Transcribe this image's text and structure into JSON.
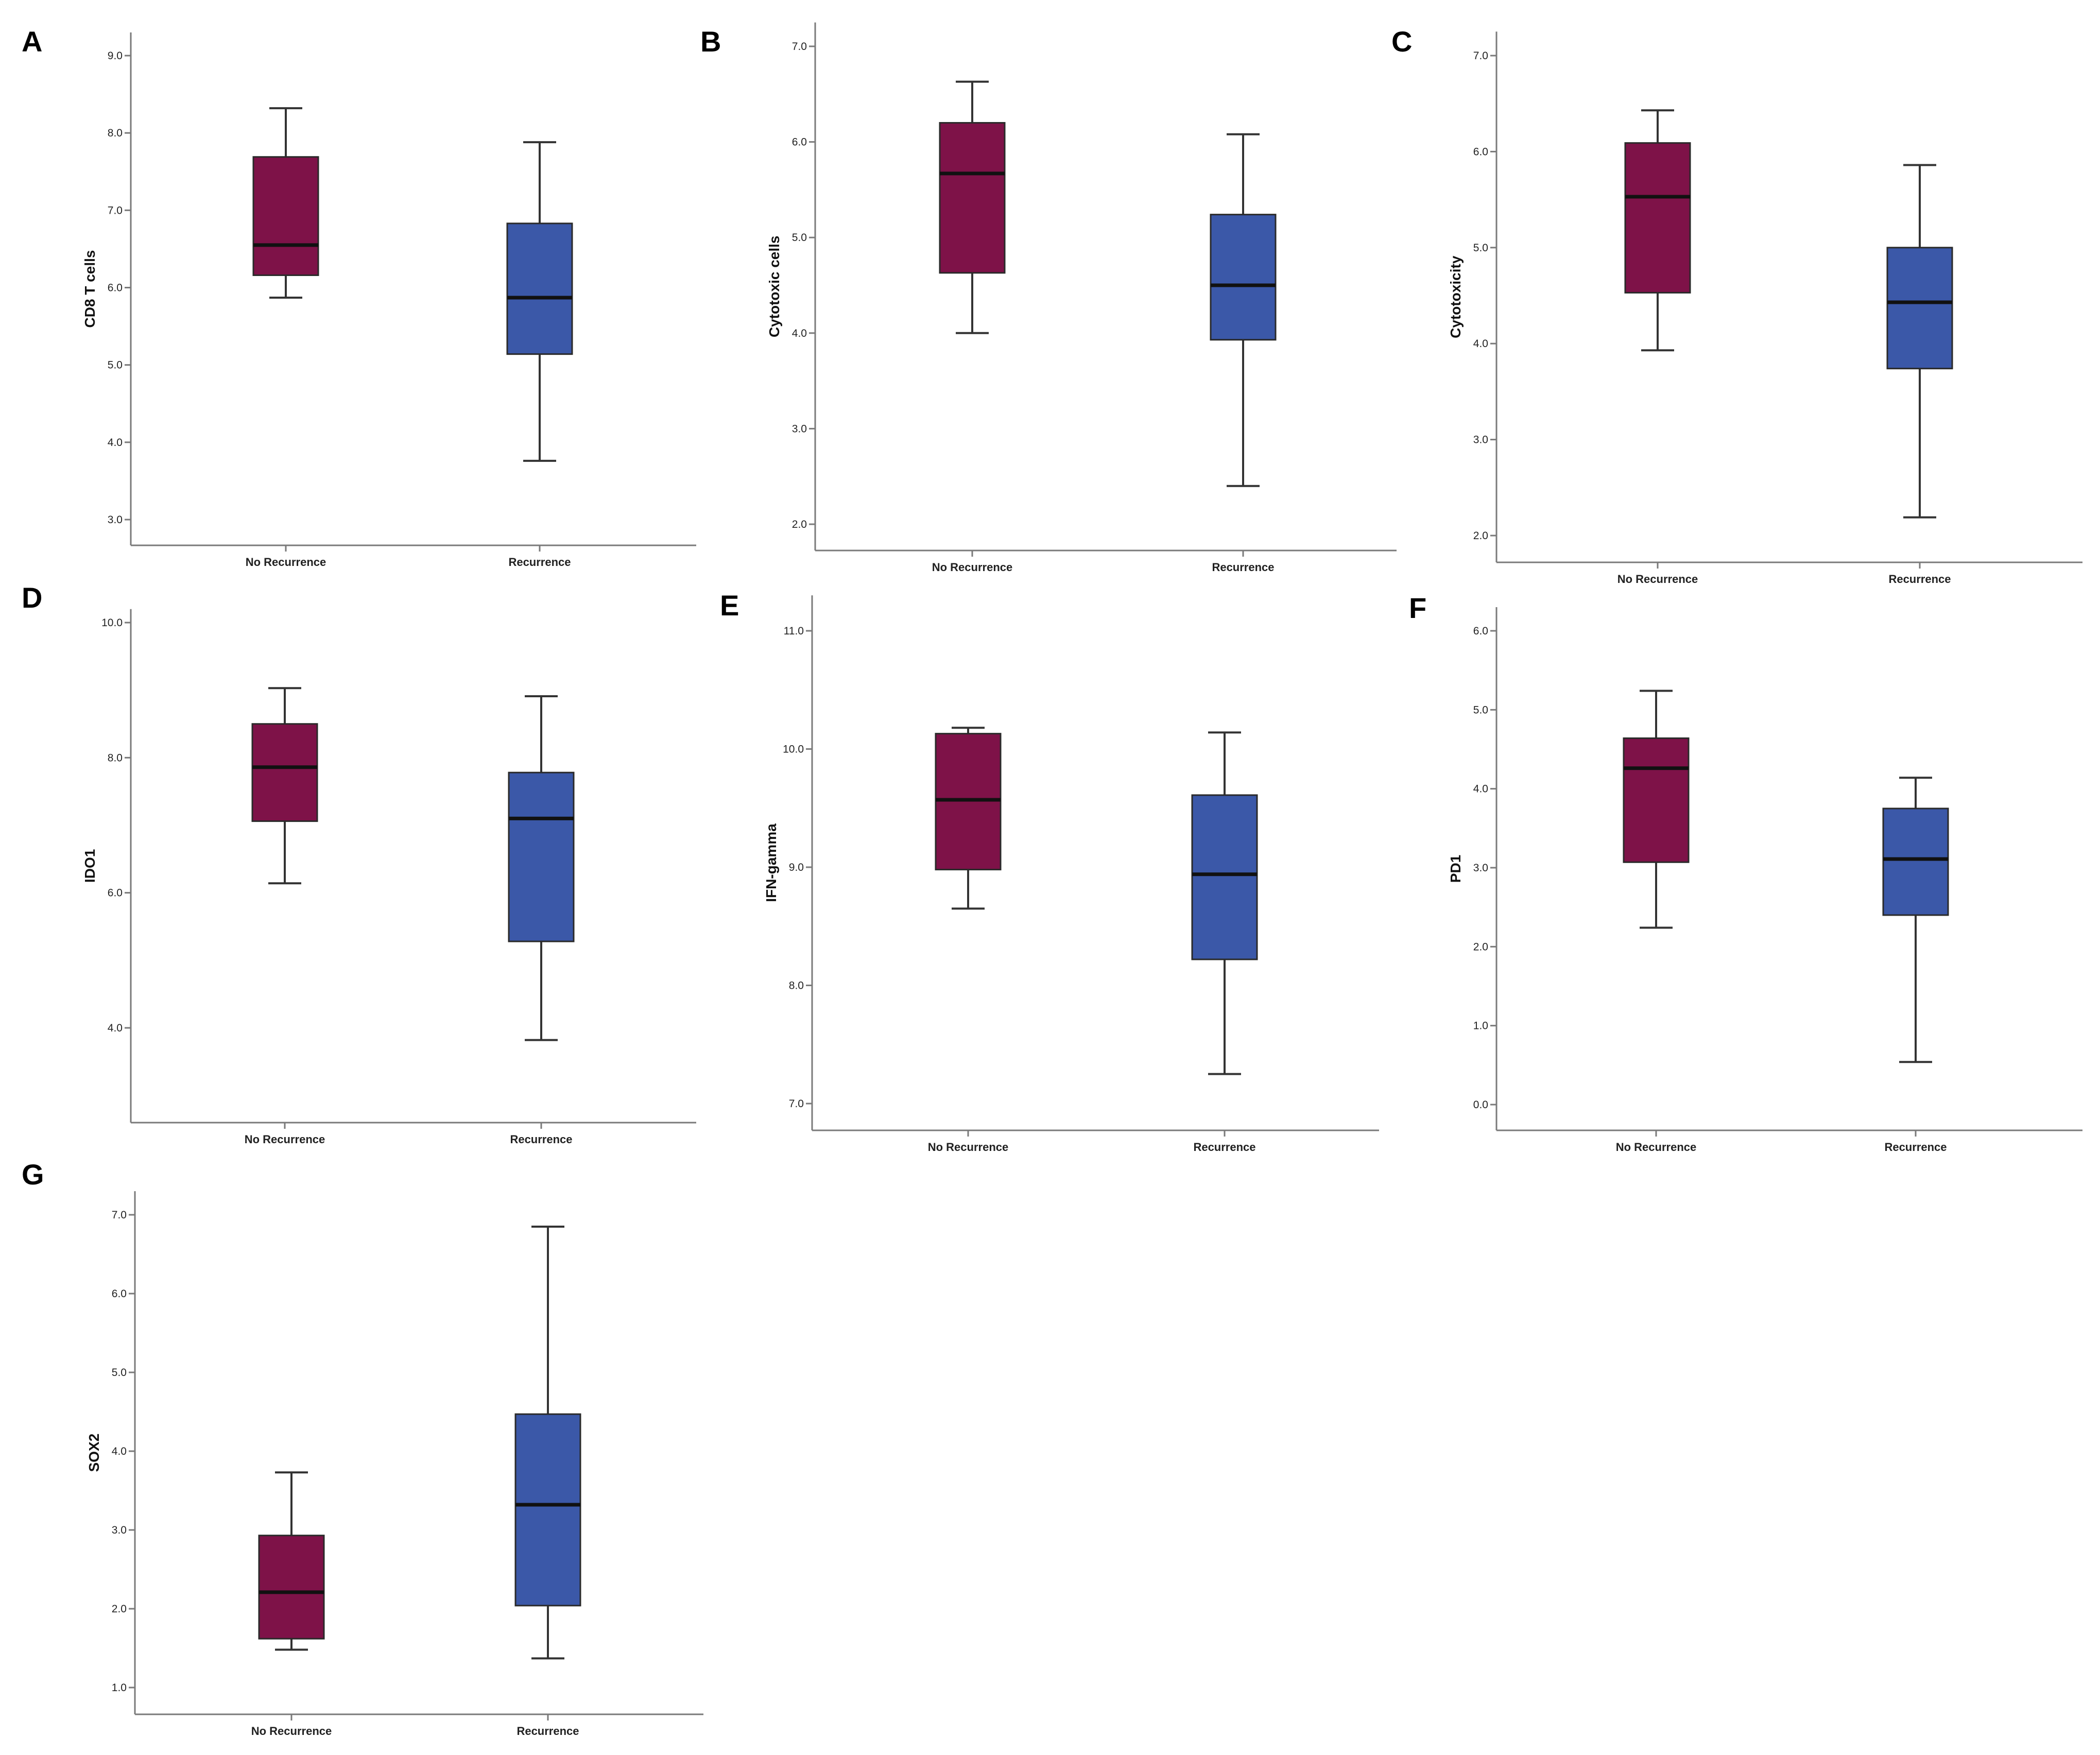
{
  "colors": {
    "no_recurrence": "#7e1248",
    "recurrence": "#3b58a8",
    "axis": "#7a7a7a",
    "whisker": "#333333",
    "median": "#111111"
  },
  "chart_data": [
    {
      "type": "boxplot",
      "panel": "A",
      "ylabel": "CD8 T cells",
      "ylim": [
        2.8,
        9.3
      ],
      "ticks": [
        "3.0",
        "4.0",
        "5.0",
        "6.0",
        "7.0",
        "8.0",
        "9.0"
      ],
      "categories": [
        "No Recurrence",
        "Recurrence"
      ],
      "boxes": [
        {
          "category": "No Recurrence",
          "min": 5.87,
          "q1": 6.16,
          "median": 6.55,
          "q3": 7.69,
          "max": 8.32
        },
        {
          "category": "Recurrence",
          "min": 3.76,
          "q1": 5.14,
          "median": 5.87,
          "q3": 6.83,
          "max": 7.88
        }
      ]
    },
    {
      "type": "boxplot",
      "panel": "B",
      "ylabel": "Cytotoxic cells",
      "ylim": [
        1.75,
        7.25
      ],
      "ticks": [
        "2.0",
        "3.0",
        "4.0",
        "5.0",
        "6.0",
        "7.0"
      ],
      "categories": [
        "No Recurrence",
        "Recurrence"
      ],
      "boxes": [
        {
          "category": "No Recurrence",
          "min": 4.0,
          "q1": 4.63,
          "median": 5.67,
          "q3": 6.2,
          "max": 6.63
        },
        {
          "category": "Recurrence",
          "min": 2.4,
          "q1": 3.93,
          "median": 4.5,
          "q3": 5.24,
          "max": 6.08
        }
      ]
    },
    {
      "type": "boxplot",
      "panel": "C",
      "ylabel": "Cytotoxicity",
      "ylim": [
        1.75,
        7.25
      ],
      "ticks": [
        "2.0",
        "3.0",
        "4.0",
        "5.0",
        "6.0",
        "7.0"
      ],
      "categories": [
        "No Recurrence",
        "Recurrence"
      ],
      "boxes": [
        {
          "category": "No Recurrence",
          "min": 3.93,
          "q1": 4.53,
          "median": 5.53,
          "q3": 6.09,
          "max": 6.43
        },
        {
          "category": "Recurrence",
          "min": 2.19,
          "q1": 3.74,
          "median": 4.43,
          "q3": 5.0,
          "max": 5.86
        }
      ]
    },
    {
      "type": "boxplot",
      "panel": "D",
      "ylabel": "IDO1",
      "ylim": [
        2.6,
        10.2
      ],
      "ticks": [
        "4.0",
        "6.0",
        "8.0",
        "10.0"
      ],
      "categories": [
        "No Recurrence",
        "Recurrence"
      ],
      "boxes": [
        {
          "category": "No Recurrence",
          "min": 6.14,
          "q1": 7.06,
          "median": 7.86,
          "q3": 8.5,
          "max": 9.03
        },
        {
          "category": "Recurrence",
          "min": 3.82,
          "q1": 5.28,
          "median": 7.1,
          "q3": 7.78,
          "max": 8.91
        }
      ]
    },
    {
      "type": "boxplot",
      "panel": "E",
      "ylabel": "IFN-gamma",
      "ylim": [
        6.8,
        11.3
      ],
      "ticks": [
        "7.0",
        "8.0",
        "9.0",
        "10.0",
        "11.0"
      ],
      "categories": [
        "No Recurrence",
        "Recurrence"
      ],
      "boxes": [
        {
          "category": "No Recurrence",
          "min": 8.65,
          "q1": 8.98,
          "median": 9.57,
          "q3": 10.13,
          "max": 10.18
        },
        {
          "category": "Recurrence",
          "min": 7.25,
          "q1": 8.22,
          "median": 8.94,
          "q3": 9.61,
          "max": 10.14
        }
      ]
    },
    {
      "type": "boxplot",
      "panel": "F",
      "ylabel": "PD1",
      "ylim": [
        -0.35,
        6.3
      ],
      "ticks": [
        "0.0",
        "1.0",
        "2.0",
        "3.0",
        "4.0",
        "5.0",
        "6.0"
      ],
      "categories": [
        "No Recurrence",
        "Recurrence"
      ],
      "boxes": [
        {
          "category": "No Recurrence",
          "min": 2.24,
          "q1": 3.07,
          "median": 4.26,
          "q3": 4.64,
          "max": 5.24
        },
        {
          "category": "Recurrence",
          "min": 0.54,
          "q1": 2.4,
          "median": 3.11,
          "q3": 3.75,
          "max": 4.14
        }
      ]
    },
    {
      "type": "boxplot",
      "panel": "G",
      "ylabel": "SOX2",
      "ylim": [
        0.7,
        7.3
      ],
      "ticks": [
        "1.0",
        "2.0",
        "3.0",
        "4.0",
        "5.0",
        "6.0",
        "7.0"
      ],
      "categories": [
        "No Recurrence",
        "Recurrence"
      ],
      "boxes": [
        {
          "category": "No Recurrence",
          "min": 1.48,
          "q1": 1.62,
          "median": 2.21,
          "q3": 2.93,
          "max": 3.73
        },
        {
          "category": "Recurrence",
          "min": 1.37,
          "q1": 2.04,
          "median": 3.32,
          "q3": 4.47,
          "max": 6.85
        }
      ]
    }
  ]
}
